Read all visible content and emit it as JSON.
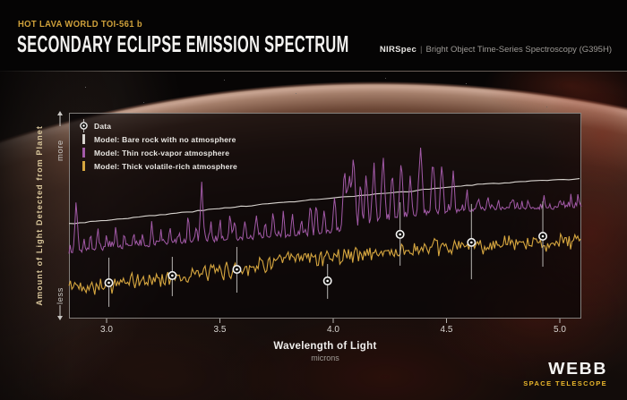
{
  "header": {
    "kicker": "HOT LAVA WORLD TOI-561 b",
    "title": "SECONDARY ECLIPSE EMISSION SPECTRUM",
    "instrument": "NIRSpec",
    "separator": "|",
    "mode": "Bright Object Time-Series Spectroscopy (G395H)"
  },
  "legend": {
    "data_label": "Data",
    "items": [
      {
        "label": "Model: Bare rock with no atmosphere",
        "color": "#d8d4cf"
      },
      {
        "label": "Model: Thin rock-vapor atmosphere",
        "color": "#a35aa8"
      },
      {
        "label": "Model: Thick volatile-rich atmosphere",
        "color": "#d6a63f"
      }
    ]
  },
  "logo": {
    "name": "WEBB",
    "tagline": "SPACE TELESCOPE"
  },
  "colors": {
    "accent_gold": "#cfa13b",
    "bare_rock_line": "#d8d4cf",
    "rock_vapor_line": "#a35aa8",
    "volatile_line": "#d6a63f",
    "data_point": "#ffffff",
    "error_bar": "#c4c2bf"
  },
  "chart_data": {
    "type": "line",
    "title": "Secondary Eclipse Emission Spectrum of TOI-561 b",
    "xlabel": "Wavelength of Light",
    "x_units": "microns",
    "x_ticks": [
      3.0,
      3.5,
      4.0,
      4.5,
      5.0
    ],
    "x_tick_labels": [
      "3.0",
      "3.5",
      "4.0",
      "4.5",
      "5.0"
    ],
    "x_range": [
      2.834,
      5.095
    ],
    "ylabel": "Amount of Light Detected from Planet",
    "y_units": "relative brightness, 0 = less, 1 = more (axis unlabeled)",
    "y_range": [
      0,
      1
    ],
    "y_end_labels": {
      "top": "more",
      "bottom": "less"
    },
    "grid": false,
    "legend_position": "top-left inside plot",
    "series": [
      {
        "name": "Model: Bare rock with no atmosphere",
        "style": "smooth rising line",
        "color": "#d8d4cf",
        "anchors": [
          [
            2.834,
            0.461
          ],
          [
            3.0,
            0.478
          ],
          [
            3.24,
            0.504
          ],
          [
            3.59,
            0.545
          ],
          [
            3.94,
            0.58
          ],
          [
            4.29,
            0.613
          ],
          [
            4.47,
            0.635
          ],
          [
            4.65,
            0.652
          ],
          [
            4.82,
            0.664
          ],
          [
            5.095,
            0.678
          ]
        ],
        "noise_amp": 0.005
      },
      {
        "name": "Model: Thin rock-vapor atmosphere",
        "style": "baseline with emission spikes",
        "color": "#a35aa8",
        "baseline": [
          [
            2.834,
            0.322
          ],
          [
            3.0,
            0.34
          ],
          [
            3.24,
            0.361
          ],
          [
            3.59,
            0.387
          ],
          [
            3.94,
            0.409
          ],
          [
            4.12,
            0.448
          ],
          [
            4.29,
            0.491
          ],
          [
            4.47,
            0.517
          ],
          [
            4.73,
            0.535
          ],
          [
            5.095,
            0.539
          ]
        ],
        "spikes": [
          [
            2.866,
            0.248
          ],
          [
            2.9,
            0.061
          ],
          [
            2.93,
            0.087
          ],
          [
            2.962,
            0.109
          ],
          [
            3.0,
            0.07
          ],
          [
            3.04,
            0.096
          ],
          [
            3.08,
            0.061
          ],
          [
            3.12,
            0.078
          ],
          [
            3.16,
            0.052
          ],
          [
            3.2,
            0.104
          ],
          [
            3.24,
            0.07
          ],
          [
            3.28,
            0.087
          ],
          [
            3.32,
            0.061
          ],
          [
            3.36,
            0.113
          ],
          [
            3.395,
            0.078
          ],
          [
            3.42,
            0.27
          ],
          [
            3.46,
            0.07
          ],
          [
            3.5,
            0.096
          ],
          [
            3.545,
            0.13
          ],
          [
            3.565,
            0.104
          ],
          [
            3.61,
            0.078
          ],
          [
            3.66,
            0.122
          ],
          [
            3.7,
            0.087
          ],
          [
            3.735,
            0.139
          ],
          [
            3.78,
            0.096
          ],
          [
            3.82,
            0.113
          ],
          [
            3.86,
            0.087
          ],
          [
            3.9,
            0.148
          ],
          [
            3.925,
            0.165
          ],
          [
            3.96,
            0.122
          ],
          [
            4.005,
            0.174
          ],
          [
            4.05,
            0.313
          ],
          [
            4.07,
            0.261
          ],
          [
            4.09,
            0.348
          ],
          [
            4.12,
            0.217
          ],
          [
            4.145,
            0.252
          ],
          [
            4.18,
            0.283
          ],
          [
            4.22,
            0.313
          ],
          [
            4.26,
            0.239
          ],
          [
            4.3,
            0.283
          ],
          [
            4.34,
            0.209
          ],
          [
            4.385,
            0.339
          ],
          [
            4.44,
            0.27
          ],
          [
            4.48,
            0.239
          ],
          [
            4.53,
            0.183
          ],
          [
            4.59,
            0.087
          ],
          [
            4.64,
            0.07
          ],
          [
            4.68,
            0.052
          ],
          [
            4.73,
            0.043
          ],
          [
            4.79,
            0.052
          ],
          [
            4.86,
            0.043
          ],
          [
            4.93,
            0.061
          ],
          [
            5.0,
            0.043
          ],
          [
            5.05,
            0.052
          ],
          [
            5.08,
            0.07
          ]
        ],
        "noise_amp": 0.014
      },
      {
        "name": "Model: Thick volatile-rich atmosphere",
        "style": "noisy rising line",
        "color": "#d6a63f",
        "baseline": [
          [
            2.834,
            0.157
          ],
          [
            3.02,
            0.165
          ],
          [
            3.29,
            0.2
          ],
          [
            3.55,
            0.236
          ],
          [
            3.81,
            0.287
          ],
          [
            4.06,
            0.309
          ],
          [
            4.33,
            0.33
          ],
          [
            4.59,
            0.352
          ],
          [
            4.85,
            0.362
          ],
          [
            5.095,
            0.38
          ]
        ],
        "noise_amp": 0.056
      }
    ],
    "data_points": {
      "name": "Data",
      "marker": "circle with center dot and vertical error bar",
      "color": "#ffffff",
      "points": [
        {
          "x": 3.01,
          "y": 0.174,
          "err_up": 0.122,
          "err_down": 0.117
        },
        {
          "x": 3.29,
          "y": 0.209,
          "err_up": 0.091,
          "err_down": 0.1
        },
        {
          "x": 3.575,
          "y": 0.239,
          "err_up": 0.109,
          "err_down": 0.113
        },
        {
          "x": 3.975,
          "y": 0.183,
          "err_up": 0.082,
          "err_down": 0.087
        },
        {
          "x": 4.295,
          "y": 0.409,
          "err_up": 0.156,
          "err_down": 0.152
        },
        {
          "x": 4.61,
          "y": 0.37,
          "err_up": 0.187,
          "err_down": 0.179
        },
        {
          "x": 4.925,
          "y": 0.4,
          "err_up": 0.17,
          "err_down": 0.148
        }
      ]
    }
  }
}
